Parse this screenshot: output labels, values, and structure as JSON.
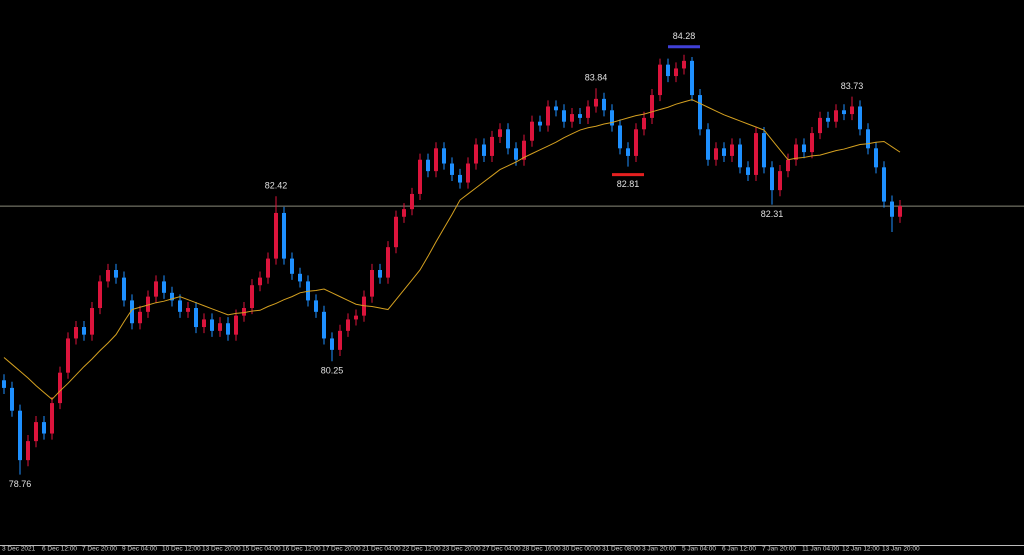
{
  "chart_data": {
    "type": "candlestick",
    "categories": [
      "3 Dec 2021",
      null,
      null,
      null,
      null,
      "6 Dec 12:00",
      null,
      null,
      null,
      null,
      "7 Dec 20:00",
      null,
      null,
      null,
      null,
      "9 Dec 04:00",
      null,
      null,
      null,
      null,
      "10 Dec 12:00",
      null,
      null,
      null,
      null,
      "13 Dec 20:00",
      null,
      null,
      null,
      null,
      "15 Dec 04:00",
      null,
      null,
      null,
      null,
      "16 Dec 12:00",
      null,
      null,
      null,
      null,
      "17 Dec 20:00",
      null,
      null,
      null,
      null,
      "21 Dec 04:00",
      null,
      null,
      null,
      null,
      "22 Dec 12:00",
      null,
      null,
      null,
      null,
      "23 Dec 20:00",
      null,
      null,
      null,
      null,
      "27 Dec 04:00",
      null,
      null,
      null,
      null,
      "28 Dec 16:00",
      null,
      null,
      null,
      null,
      "30 Dec 00:00",
      null,
      null,
      null,
      null,
      "31 Dec 08:00",
      null,
      null,
      null,
      null,
      "3 Jan 20:00",
      null,
      null,
      null,
      null,
      "5 Jan 04:00",
      null,
      null,
      null,
      null,
      "6 Jan 12:00",
      null,
      null,
      null,
      null,
      "7 Jan 20:00",
      null,
      null,
      null,
      null,
      "11 Jan 04:00",
      null,
      null,
      null,
      null,
      "12 Jan 12:00",
      null,
      null,
      null,
      null,
      "13 Jan 20:00",
      null,
      null
    ],
    "ohlc": [
      [
        80.0,
        80.08,
        79.82,
        79.9
      ],
      [
        79.9,
        79.98,
        79.52,
        79.6
      ],
      [
        79.6,
        79.68,
        78.76,
        78.95
      ],
      [
        78.95,
        79.28,
        78.87,
        79.2
      ],
      [
        79.2,
        79.53,
        79.12,
        79.45
      ],
      [
        79.45,
        79.53,
        79.22,
        79.3
      ],
      [
        79.3,
        79.78,
        79.22,
        79.7
      ],
      [
        79.7,
        80.18,
        79.62,
        80.1
      ],
      [
        80.1,
        80.63,
        80.02,
        80.55
      ],
      [
        80.55,
        80.78,
        80.47,
        80.7
      ],
      [
        80.7,
        80.78,
        80.52,
        80.6
      ],
      [
        80.6,
        81.03,
        80.52,
        80.95
      ],
      [
        80.95,
        81.38,
        80.87,
        81.3
      ],
      [
        81.3,
        81.53,
        81.22,
        81.45
      ],
      [
        81.45,
        81.53,
        81.27,
        81.35
      ],
      [
        81.35,
        81.43,
        80.97,
        81.05
      ],
      [
        81.05,
        81.13,
        80.67,
        80.75
      ],
      [
        80.75,
        80.98,
        80.67,
        80.9
      ],
      [
        80.9,
        81.18,
        80.82,
        81.1
      ],
      [
        81.1,
        81.38,
        81.02,
        81.3
      ],
      [
        81.3,
        81.38,
        81.07,
        81.15
      ],
      [
        81.15,
        81.23,
        80.97,
        81.05
      ],
      [
        81.05,
        81.13,
        80.82,
        80.9
      ],
      [
        80.9,
        81.03,
        80.82,
        80.95
      ],
      [
        80.95,
        81.03,
        80.62,
        80.7
      ],
      [
        80.7,
        80.88,
        80.62,
        80.8
      ],
      [
        80.8,
        80.88,
        80.57,
        80.65
      ],
      [
        80.65,
        80.83,
        80.57,
        80.75
      ],
      [
        80.75,
        80.83,
        80.52,
        80.6
      ],
      [
        80.6,
        80.93,
        80.52,
        80.85
      ],
      [
        80.85,
        81.03,
        80.77,
        80.95
      ],
      [
        80.95,
        81.33,
        80.87,
        81.25
      ],
      [
        81.25,
        81.43,
        81.17,
        81.35
      ],
      [
        81.35,
        81.68,
        81.27,
        81.6
      ],
      [
        81.6,
        82.42,
        81.52,
        82.2
      ],
      [
        82.2,
        82.28,
        81.52,
        81.6
      ],
      [
        81.6,
        81.68,
        81.32,
        81.4
      ],
      [
        81.4,
        81.48,
        81.22,
        81.3
      ],
      [
        81.3,
        81.38,
        80.97,
        81.05
      ],
      [
        81.05,
        81.13,
        80.82,
        80.9
      ],
      [
        80.9,
        80.98,
        80.47,
        80.55
      ],
      [
        80.55,
        80.63,
        80.25,
        80.4
      ],
      [
        80.4,
        80.73,
        80.32,
        80.65
      ],
      [
        80.65,
        80.88,
        80.57,
        80.8
      ],
      [
        80.8,
        80.93,
        80.72,
        80.85
      ],
      [
        80.85,
        81.18,
        80.77,
        81.1
      ],
      [
        81.1,
        81.53,
        81.02,
        81.45
      ],
      [
        81.45,
        81.53,
        81.27,
        81.35
      ],
      [
        81.35,
        81.83,
        81.27,
        81.75
      ],
      [
        81.75,
        82.23,
        81.67,
        82.15
      ],
      [
        82.15,
        82.33,
        82.07,
        82.25
      ],
      [
        82.25,
        82.53,
        82.17,
        82.45
      ],
      [
        82.45,
        82.98,
        82.37,
        82.9
      ],
      [
        82.9,
        82.98,
        82.67,
        82.75
      ],
      [
        82.75,
        83.13,
        82.67,
        83.05
      ],
      [
        83.05,
        83.13,
        82.77,
        82.85
      ],
      [
        82.85,
        82.93,
        82.62,
        82.7
      ],
      [
        82.7,
        82.78,
        82.52,
        82.6
      ],
      [
        82.6,
        82.93,
        82.52,
        82.85
      ],
      [
        82.85,
        83.18,
        82.77,
        83.1
      ],
      [
        83.1,
        83.18,
        82.87,
        82.95
      ],
      [
        82.95,
        83.28,
        82.87,
        83.2
      ],
      [
        83.2,
        83.38,
        83.12,
        83.3
      ],
      [
        83.3,
        83.38,
        82.97,
        83.05
      ],
      [
        83.05,
        83.13,
        82.82,
        82.9
      ],
      [
        82.9,
        83.23,
        82.82,
        83.15
      ],
      [
        83.15,
        83.48,
        83.07,
        83.4
      ],
      [
        83.4,
        83.48,
        83.27,
        83.35
      ],
      [
        83.35,
        83.68,
        83.27,
        83.6
      ],
      [
        83.6,
        83.68,
        83.47,
        83.55
      ],
      [
        83.55,
        83.63,
        83.32,
        83.4
      ],
      [
        83.4,
        83.58,
        83.32,
        83.5
      ],
      [
        83.5,
        83.58,
        83.37,
        83.45
      ],
      [
        83.45,
        83.68,
        83.37,
        83.6
      ],
      [
        83.6,
        83.84,
        83.52,
        83.7
      ],
      [
        83.7,
        83.78,
        83.47,
        83.55
      ],
      [
        83.55,
        83.63,
        83.27,
        83.35
      ],
      [
        83.35,
        83.43,
        82.97,
        83.05
      ],
      [
        83.05,
        83.13,
        82.81,
        82.95
      ],
      [
        82.95,
        83.38,
        82.87,
        83.3
      ],
      [
        83.3,
        83.53,
        83.22,
        83.45
      ],
      [
        83.45,
        83.83,
        83.37,
        83.75
      ],
      [
        83.75,
        84.23,
        83.67,
        84.15
      ],
      [
        84.15,
        84.23,
        83.92,
        84.0
      ],
      [
        84.0,
        84.18,
        83.92,
        84.1
      ],
      [
        84.1,
        84.28,
        84.02,
        84.2
      ],
      [
        84.2,
        84.25,
        83.67,
        83.75
      ],
      [
        83.75,
        83.83,
        83.22,
        83.3
      ],
      [
        83.3,
        83.38,
        82.82,
        82.9
      ],
      [
        82.9,
        83.13,
        82.82,
        83.05
      ],
      [
        83.05,
        83.13,
        82.87,
        82.95
      ],
      [
        82.95,
        83.18,
        82.87,
        83.1
      ],
      [
        83.1,
        83.18,
        82.72,
        82.8
      ],
      [
        82.8,
        82.88,
        82.62,
        82.7
      ],
      [
        82.7,
        83.33,
        82.62,
        83.25
      ],
      [
        83.25,
        83.33,
        82.72,
        82.8
      ],
      [
        82.8,
        82.88,
        82.31,
        82.5
      ],
      [
        82.5,
        82.83,
        82.42,
        82.75
      ],
      [
        82.75,
        82.98,
        82.67,
        82.9
      ],
      [
        82.9,
        83.18,
        82.82,
        83.1
      ],
      [
        83.1,
        83.18,
        82.92,
        83.0
      ],
      [
        83.0,
        83.33,
        82.92,
        83.25
      ],
      [
        83.25,
        83.53,
        83.17,
        83.45
      ],
      [
        83.45,
        83.53,
        83.32,
        83.4
      ],
      [
        83.4,
        83.63,
        83.32,
        83.55
      ],
      [
        83.55,
        83.63,
        83.42,
        83.5
      ],
      [
        83.5,
        83.73,
        83.42,
        83.6
      ],
      [
        83.6,
        83.68,
        83.22,
        83.3
      ],
      [
        83.3,
        83.38,
        82.97,
        83.05
      ],
      [
        83.05,
        83.13,
        82.72,
        82.8
      ],
      [
        82.8,
        82.88,
        82.27,
        82.35
      ],
      [
        82.35,
        82.43,
        81.95,
        82.15
      ],
      [
        82.15,
        82.37,
        82.07,
        82.29
      ]
    ],
    "ma": {
      "color": "#d4a020",
      "values": [
        80.3,
        80.21,
        80.12,
        80.03,
        79.93,
        79.84,
        79.75,
        79.86,
        79.96,
        80.07,
        80.18,
        80.28,
        80.39,
        80.49,
        80.6,
        80.77,
        80.93,
        80.96,
        80.99,
        81.02,
        81.04,
        81.07,
        81.1,
        81.06,
        81.02,
        80.98,
        80.94,
        80.9,
        80.86,
        80.88,
        80.89,
        80.91,
        80.92,
        80.97,
        81.01,
        81.06,
        81.1,
        81.15,
        81.17,
        81.18,
        81.2,
        81.15,
        81.1,
        81.05,
        81.0,
        80.98,
        80.97,
        80.95,
        80.93,
        81.06,
        81.19,
        81.32,
        81.45,
        81.63,
        81.82,
        82.0,
        82.18,
        82.37,
        82.45,
        82.53,
        82.61,
        82.69,
        82.77,
        82.82,
        82.87,
        82.93,
        82.98,
        83.03,
        83.08,
        83.13,
        83.19,
        83.24,
        83.29,
        83.32,
        83.34,
        83.37,
        83.39,
        83.42,
        83.45,
        83.48,
        83.5,
        83.53,
        83.56,
        83.59,
        83.63,
        83.66,
        83.69,
        83.64,
        83.59,
        83.54,
        83.49,
        83.45,
        83.41,
        83.37,
        83.33,
        83.29,
        83.16,
        83.03,
        82.9,
        82.92,
        82.93,
        82.95,
        82.96,
        82.99,
        83.02,
        83.04,
        83.07,
        83.1,
        83.11,
        83.13,
        83.14,
        83.07,
        83.0
      ]
    },
    "up_color": "#dc143c",
    "down_color": "#1e90ff",
    "extremes": [
      78.76,
      80.25,
      82.42,
      82.81,
      83.84,
      84.28,
      82.31,
      83.73
    ],
    "levels": [
      {
        "value": 84.28,
        "color": "#4040d8"
      },
      {
        "value": 82.81,
        "color": "#e52020"
      }
    ],
    "price_line": 82.29,
    "ylim": [
      77.9,
      85.0
    ]
  }
}
